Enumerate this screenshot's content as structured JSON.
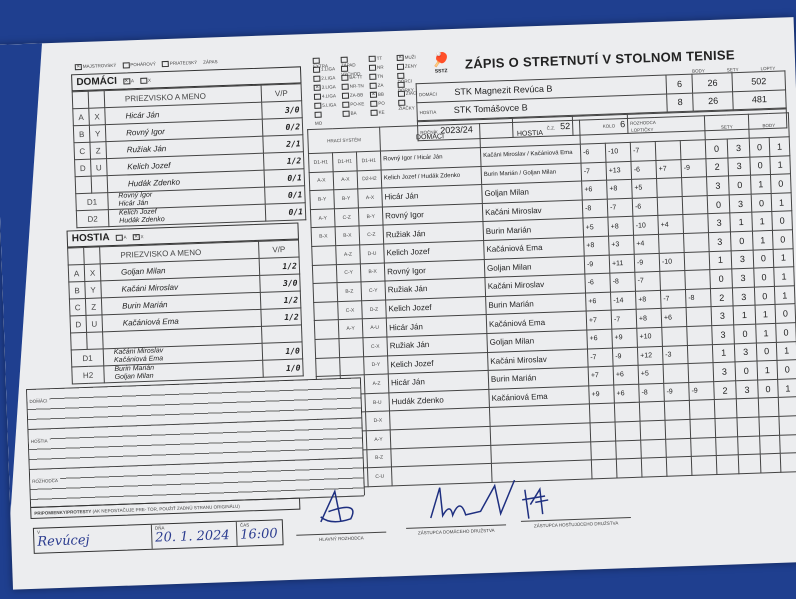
{
  "match_type": [
    {
      "label": "Majstrovský",
      "checked": true
    },
    {
      "label": "Pohárový",
      "checked": false
    },
    {
      "label": "Priateľský",
      "checked": false
    },
    {
      "label": "Zápas",
      "checked": null
    }
  ],
  "competition": [
    [
      {
        "label": "Extra",
        "checked": false
      },
      {
        "label": "1.liga",
        "checked": false
      },
      {
        "label": "2.liga",
        "checked": false
      },
      {
        "label": "3.liga",
        "checked": true
      },
      {
        "label": "4.liga",
        "checked": false
      },
      {
        "label": "5.liga",
        "checked": false
      },
      {
        "label": "",
        "checked": false
      },
      {
        "label": "MO",
        "checked": null
      }
    ],
    [
      {
        "label": "Západ",
        "checked": false
      },
      {
        "label": "Východ",
        "checked": false
      },
      {
        "label": "BA-TT",
        "checked": false
      },
      {
        "label": "NR-TN",
        "checked": false
      },
      {
        "label": "ZA-BB",
        "checked": false
      },
      {
        "label": "PO-KE",
        "checked": false
      },
      {
        "label": "BA",
        "checked": false
      }
    ],
    [
      {
        "label": "TT",
        "checked": false
      },
      {
        "label": "NR",
        "checked": false
      },
      {
        "label": "TN",
        "checked": false
      },
      {
        "label": "ZA",
        "checked": false
      },
      {
        "label": "BB",
        "checked": true
      },
      {
        "label": "PO",
        "checked": false
      },
      {
        "label": "KE",
        "checked": false
      }
    ],
    [
      {
        "label": "Muži",
        "checked": true
      },
      {
        "label": "Ženy",
        "checked": false
      },
      {
        "label": "Dorci",
        "checked": false
      },
      {
        "label": "Dorky",
        "checked": false
      },
      {
        "label": "Žiaci",
        "checked": false
      },
      {
        "label": "Žiačky",
        "checked": false
      }
    ]
  ],
  "logo_text": "SSTZ",
  "title": "ZÁPIS O STRETNUTÍ V STOLNOM TENISE",
  "header": {
    "body_label": "Body",
    "sety_label": "Sety",
    "lopty_label": "Lopty",
    "home_label": "Domáci",
    "home_team": "STK Magnezit Revúca B",
    "home_body": "6",
    "home_sety": "26",
    "home_lopty": "502",
    "guest_label": "Hostia",
    "guest_team": "STK Tomášovce B",
    "guest_body": "8",
    "guest_sety": "26",
    "guest_lopty": "481",
    "rocnik_label": "Ročník",
    "rocnik": "2023/24",
    "cz_label": "Č.Z.",
    "cz": "52",
    "kolo_label": "Kolo",
    "kolo": "6",
    "rozhodca_label": "Rozhodca"
  },
  "home_team": {
    "title": "DOMÁCI",
    "ab": [
      {
        "label": "A",
        "checked": true
      },
      {
        "label": "X",
        "checked": false
      }
    ],
    "name_header": "Priezvisko a meno",
    "vp_header": "V/P",
    "players": [
      {
        "l1": "A",
        "l2": "X",
        "name": "Hicár Ján",
        "vp": "3/0"
      },
      {
        "l1": "B",
        "l2": "Y",
        "name": "Rovný Igor",
        "vp": "0/2"
      },
      {
        "l1": "C",
        "l2": "Z",
        "name": "Ružiak Ján",
        "vp": "2/1"
      },
      {
        "l1": "D",
        "l2": "U",
        "name": "Kelich Jozef",
        "vp": "1/2"
      },
      {
        "l1": "",
        "l2": "",
        "name": "Hudák Zdenko",
        "vp": "0/1"
      }
    ],
    "doubles": [
      {
        "label": "D1",
        "names": [
          "Rovný Igor",
          "Hicár Ján"
        ],
        "vp": "0/1"
      },
      {
        "label": "D2",
        "names": [
          "Kelich Jozef",
          "Hudák Zdenko"
        ],
        "vp": "0/1"
      }
    ]
  },
  "guest_team": {
    "title": "HOSTIA",
    "ab": [
      {
        "label": "A",
        "checked": false
      },
      {
        "label": "X",
        "checked": true
      }
    ],
    "name_header": "Priezvisko a meno",
    "vp_header": "V/P",
    "players": [
      {
        "l1": "A",
        "l2": "X",
        "name": "Goljan Milan",
        "vp": "1/2"
      },
      {
        "l1": "B",
        "l2": "Y",
        "name": "Kačáni Miroslav",
        "vp": "3/0"
      },
      {
        "l1": "C",
        "l2": "Z",
        "name": "Burin Marián",
        "vp": "1/2"
      },
      {
        "l1": "D",
        "l2": "U",
        "name": "Kačániová Ema",
        "vp": "1/2"
      },
      {
        "l1": "",
        "l2": "",
        "name": "",
        "vp": ""
      }
    ],
    "doubles": [
      {
        "label": "D1",
        "names": [
          "Kačáni Miroslav",
          "Kačániová Ema"
        ],
        "vp": "1/0"
      },
      {
        "label": "H2",
        "names": [
          "Burin Marián",
          "Goljan Milan"
        ],
        "vp": "1/0"
      }
    ]
  },
  "matches": {
    "system_header": "Hrací systém",
    "home_header": "Domáci",
    "guest_header": "Hostia",
    "points_header": "Loptičky",
    "sets_header": "Sety",
    "body_header": "Body",
    "rows": [
      {
        "sys": [
          "D1-H1",
          "D1-H1",
          "D1-H1"
        ],
        "home": "Rovný Igor / Hicár Ján",
        "guest": "Kačáni Miroslav / Kačániová Ema",
        "balls": [
          "-6",
          "-10",
          "-7",
          "",
          ""
        ],
        "sets": [
          "0",
          "3"
        ],
        "body": [
          "0",
          "1"
        ]
      },
      {
        "sys": [
          "A-X",
          "A-X",
          "D2-H2"
        ],
        "home": "Kelich Jozef / Hudák Zdenko",
        "guest": "Burin Marián / Goljan Milan",
        "balls": [
          "-7",
          "+13",
          "-6",
          "+7",
          "-9"
        ],
        "sets": [
          "2",
          "3"
        ],
        "body": [
          "0",
          "1"
        ]
      },
      {
        "sys": [
          "B-Y",
          "B-Y",
          "A-X"
        ],
        "home": "Hicár Ján",
        "guest": "Goljan Milan",
        "balls": [
          "+6",
          "+8",
          "+5",
          "",
          ""
        ],
        "sets": [
          "3",
          "0"
        ],
        "body": [
          "1",
          "0"
        ]
      },
      {
        "sys": [
          "A-Y",
          "C-Z",
          "B-Y"
        ],
        "home": "Rovný Igor",
        "guest": "Kačáni Miroslav",
        "balls": [
          "-8",
          "-7",
          "-6",
          "",
          ""
        ],
        "sets": [
          "0",
          "3"
        ],
        "body": [
          "0",
          "1"
        ]
      },
      {
        "sys": [
          "B-X",
          "B-X",
          "C-Z"
        ],
        "home": "Ružiak Ján",
        "guest": "Burin Marián",
        "balls": [
          "+5",
          "+8",
          "-10",
          "+4",
          ""
        ],
        "sets": [
          "3",
          "1"
        ],
        "body": [
          "1",
          "0"
        ]
      },
      {
        "sys": [
          "",
          "A-Z",
          "D-U"
        ],
        "home": "Kelich Jozef",
        "guest": "Kačániová Ema",
        "balls": [
          "+8",
          "+3",
          "+4",
          "",
          ""
        ],
        "sets": [
          "3",
          "0"
        ],
        "body": [
          "1",
          "0"
        ]
      },
      {
        "sys": [
          "",
          "C-Y",
          "B-X"
        ],
        "home": "Rovný Igor",
        "guest": "Goljan Milan",
        "balls": [
          "-9",
          "+11",
          "-9",
          "-10",
          ""
        ],
        "sets": [
          "1",
          "3"
        ],
        "body": [
          "0",
          "1"
        ]
      },
      {
        "sys": [
          "",
          "B-Z",
          "C-Y"
        ],
        "home": "Ružiak Ján",
        "guest": "Kačáni Miroslav",
        "balls": [
          "-6",
          "-8",
          "-7",
          "",
          ""
        ],
        "sets": [
          "0",
          "3"
        ],
        "body": [
          "0",
          "1"
        ]
      },
      {
        "sys": [
          "",
          "C-X",
          "D-Z"
        ],
        "home": "Kelich Jozef",
        "guest": "Burin Marián",
        "balls": [
          "+6",
          "-14",
          "+8",
          "-7",
          "-8"
        ],
        "sets": [
          "2",
          "3"
        ],
        "body": [
          "0",
          "1"
        ]
      },
      {
        "sys": [
          "",
          "A-Y",
          "A-U"
        ],
        "home": "Hicár Ján",
        "guest": "Kačániová Ema",
        "balls": [
          "+7",
          "-7",
          "+8",
          "+6",
          ""
        ],
        "sets": [
          "3",
          "1"
        ],
        "body": [
          "1",
          "0"
        ]
      },
      {
        "sys": [
          "",
          "",
          "C-X"
        ],
        "home": "Ružiak Ján",
        "guest": "Goljan Milan",
        "balls": [
          "+6",
          "+9",
          "+10",
          "",
          ""
        ],
        "sets": [
          "3",
          "0"
        ],
        "body": [
          "1",
          "0"
        ]
      },
      {
        "sys": [
          "",
          "",
          "D-Y"
        ],
        "home": "Kelich Jozef",
        "guest": "Kačáni Miroslav",
        "balls": [
          "-7",
          "-9",
          "+12",
          "-3",
          ""
        ],
        "sets": [
          "1",
          "3"
        ],
        "body": [
          "0",
          "1"
        ]
      },
      {
        "sys": [
          "",
          "",
          "A-Z"
        ],
        "home": "Hicár Ján",
        "guest": "Burin Marián",
        "balls": [
          "+7",
          "+6",
          "+5",
          "",
          ""
        ],
        "sets": [
          "3",
          "0"
        ],
        "body": [
          "1",
          "0"
        ]
      },
      {
        "sys": [
          "",
          "",
          "B-U"
        ],
        "home": "Hudák Zdenko",
        "guest": "Kačániová Ema",
        "balls": [
          "+9",
          "+6",
          "-8",
          "-9",
          "-9"
        ],
        "sets": [
          "2",
          "3"
        ],
        "body": [
          "0",
          "1"
        ]
      },
      {
        "sys": [
          "",
          "",
          "D-X"
        ],
        "home": "",
        "guest": "",
        "balls": [
          "",
          "",
          "",
          "",
          ""
        ],
        "sets": [
          "",
          ""
        ],
        "body": [
          "",
          ""
        ]
      },
      {
        "sys": [
          "",
          "",
          "A-Y"
        ],
        "home": "",
        "guest": "",
        "balls": [
          "",
          "",
          "",
          "",
          ""
        ],
        "sets": [
          "",
          ""
        ],
        "body": [
          "",
          ""
        ]
      },
      {
        "sys": [
          "",
          "",
          "B-Z"
        ],
        "home": "",
        "guest": "",
        "balls": [
          "",
          "",
          "",
          "",
          ""
        ],
        "sets": [
          "",
          ""
        ],
        "body": [
          "",
          ""
        ]
      },
      {
        "sys": [
          "",
          "",
          "C-U"
        ],
        "home": "",
        "guest": "",
        "balls": [
          "",
          "",
          "",
          "",
          ""
        ],
        "sets": [
          "",
          ""
        ],
        "body": [
          "",
          ""
        ]
      }
    ]
  },
  "notes": {
    "home_label": "Domáci",
    "guest_label": "Hostia",
    "ref_label": "Rozhodca",
    "protests_label": "Pripomienky/protesty",
    "protests_hint": "(ak nepostačuje pre- tor, použiť zadnú stranu originálu)"
  },
  "footer": {
    "place_label": "V",
    "place": "Revúcej",
    "date_label": "Dňa",
    "date": "20. 1. 2024",
    "time_label": "Čas",
    "time": "16:00",
    "sig_ref": "Hlavný rozhodca",
    "sig_home": "Zástupca domáceho družstva",
    "sig_guest": "Zástupca hosťujúceho družstva"
  }
}
